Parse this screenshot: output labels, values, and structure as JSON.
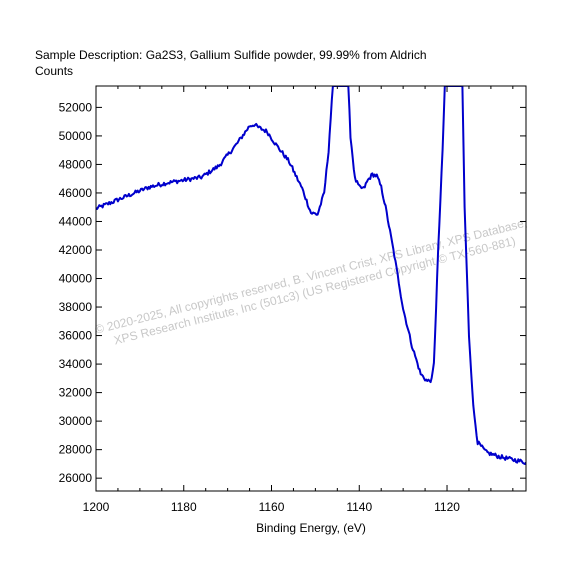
{
  "chart_data": {
    "type": "line",
    "title": "Sample Description:  Ga2S3, Gallium Sulfide powder, 99.99% from Aldrich",
    "ylabel": "Counts",
    "xlabel": "Binding Energy, (eV)",
    "x_reversed": true,
    "xlim": [
      1200,
      1102
    ],
    "ylim": [
      25100,
      53500
    ],
    "x_ticks": [
      1200,
      1180,
      1160,
      1140,
      1120
    ],
    "x_tick_labels": [
      "1200",
      "1180",
      "1160",
      "1140",
      "1120"
    ],
    "y_ticks": [
      26000,
      28000,
      30000,
      32000,
      34000,
      36000,
      38000,
      40000,
      42000,
      44000,
      46000,
      48000,
      50000,
      52000
    ],
    "y_tick_labels": [
      "26000",
      "28000",
      "30000",
      "32000",
      "34000",
      "36000",
      "38000",
      "40000",
      "42000",
      "44000",
      "46000",
      "48000",
      "50000",
      "52000"
    ],
    "grid": false,
    "line_color": "#0000cc",
    "series": [
      {
        "x": [
          1200,
          1196,
          1192,
          1188,
          1184,
          1180,
          1176,
          1172,
          1168,
          1165,
          1164,
          1163,
          1161,
          1159,
          1156,
          1153,
          1151,
          1149.5,
          1148,
          1147,
          1146,
          1145.6,
          1145,
          1144,
          1143,
          1142.5,
          1142,
          1141,
          1140,
          1139,
          1138,
          1137,
          1136,
          1135,
          1134,
          1132,
          1130,
          1128,
          1126,
          1124.5,
          1123.5,
          1123,
          1122,
          1121,
          1120.5,
          1120,
          1119.5,
          1118,
          1117,
          1116.5,
          1116,
          1115,
          1114,
          1113,
          1111,
          1108,
          1105,
          1102
        ],
        "y": [
          44900,
          45400,
          45900,
          46400,
          46700,
          46900,
          47100,
          47900,
          49400,
          50700,
          50800,
          50600,
          50300,
          49400,
          48200,
          46300,
          44600,
          44500,
          46000,
          49000,
          53500,
          53500,
          53500,
          53500,
          53500,
          53500,
          50000,
          47000,
          46400,
          46300,
          46900,
          47300,
          47200,
          46400,
          45000,
          41600,
          37900,
          35300,
          33300,
          32800,
          32900,
          34000,
          42000,
          49000,
          53500,
          53500,
          53500,
          53500,
          53500,
          53500,
          45000,
          36000,
          31000,
          28500,
          27800,
          27500,
          27300,
          27100
        ]
      }
    ],
    "watermark": [
      "©  2020-2025,  All copyrights reserved,    B. Vincent Crist,  XPS Library,  XPS Database,",
      "XPS Research Institute, Inc (501c3)   (US Registered Copyright © TX-560-881)"
    ]
  }
}
